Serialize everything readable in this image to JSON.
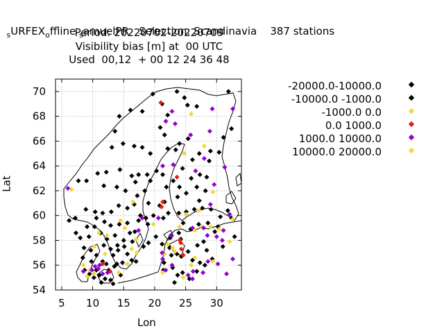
{
  "title": {
    "line1": "SURFEX offline SamuelPR   Selection: Scandinavia    387 stations",
    "line1_parts": {
      "a_big": "URFEX",
      "a_sub": "s",
      "b_sub": "o",
      "b_big": "ffline ",
      "c_sub": "s",
      "c_big": "amuelPR   Selection: Scandinavia    387 stations"
    },
    "line2": "Period: 20220702-20220709",
    "line3": "Visibility bias [m] at  00 UTC",
    "line4": "Used  00,12  + 00 12 24 36 48"
  },
  "colors": {
    "black": "#000000",
    "yellow": "#f0d840",
    "red": "#e02010",
    "purple": "#9400d3",
    "grid": "#a0a0a0",
    "coast": "#000000"
  },
  "chart_data": {
    "type": "scatter",
    "xlabel": "Lon",
    "ylabel": "Lat",
    "xlim": [
      4,
      34
    ],
    "ylim": [
      54,
      71
    ],
    "xticks": [
      5,
      10,
      15,
      20,
      25,
      30
    ],
    "yticks": [
      54,
      56,
      58,
      60,
      62,
      64,
      66,
      68,
      70
    ],
    "grid": true,
    "legend_placement": "right",
    "series": [
      {
        "name": "-20000.0-10000.0",
        "color": "black",
        "points": [
          [
            31.9,
            70.0
          ],
          [
            23.6,
            70.0
          ],
          [
            24.8,
            69.5
          ],
          [
            19.7,
            69.8
          ],
          [
            21.2,
            69.0
          ],
          [
            25.3,
            68.9
          ],
          [
            26.8,
            68.8
          ],
          [
            22.1,
            68.1
          ],
          [
            18.0,
            68.4
          ],
          [
            16.1,
            68.5
          ],
          [
            14.3,
            68.0
          ],
          [
            13.6,
            66.8
          ],
          [
            13.1,
            65.5
          ],
          [
            14.9,
            65.8
          ],
          [
            18.0,
            65.5
          ],
          [
            16.7,
            65.6
          ],
          [
            19.3,
            65.0
          ],
          [
            20.9,
            67.1
          ],
          [
            21.6,
            66.5
          ],
          [
            24.0,
            65.8
          ],
          [
            25.4,
            66.2
          ],
          [
            27.2,
            65.0
          ],
          [
            29.0,
            65.2
          ],
          [
            30.4,
            65.1
          ],
          [
            31.1,
            66.3
          ],
          [
            22.1,
            65.4
          ],
          [
            23.4,
            65.3
          ],
          [
            26.1,
            64.5
          ],
          [
            28.8,
            64.4
          ],
          [
            32.4,
            67.0
          ],
          [
            25.9,
            63.0
          ],
          [
            27.3,
            63.3
          ],
          [
            28.4,
            63.1
          ],
          [
            24.5,
            63.8
          ],
          [
            21.3,
            63.3
          ],
          [
            20.3,
            63.6
          ],
          [
            18.8,
            63.3
          ],
          [
            17.4,
            63.3
          ],
          [
            16.3,
            63.2
          ],
          [
            14.4,
            63.7
          ],
          [
            12.2,
            63.5
          ],
          [
            10.8,
            63.4
          ],
          [
            9.0,
            62.8
          ],
          [
            7.7,
            62.8
          ],
          [
            11.8,
            62.4
          ],
          [
            13.9,
            62.3
          ],
          [
            15.3,
            62.0
          ],
          [
            16.9,
            62.7
          ],
          [
            18.4,
            62.0
          ],
          [
            19.3,
            62.8
          ],
          [
            21.9,
            62.3
          ],
          [
            23.0,
            62.8
          ],
          [
            24.0,
            62.3
          ],
          [
            25.1,
            61.8
          ],
          [
            26.8,
            62.3
          ],
          [
            28.2,
            62.0
          ],
          [
            27.2,
            61.2
          ],
          [
            23.7,
            61.5
          ],
          [
            21.6,
            61.1
          ],
          [
            19.0,
            61.0
          ],
          [
            17.2,
            61.6
          ],
          [
            16.7,
            60.9
          ],
          [
            15.6,
            60.6
          ],
          [
            14.2,
            60.8
          ],
          [
            13.0,
            60.3
          ],
          [
            11.6,
            60.2
          ],
          [
            10.4,
            60.3
          ],
          [
            8.9,
            60.5
          ],
          [
            7.2,
            59.8
          ],
          [
            6.2,
            59.6
          ],
          [
            9.1,
            59.1
          ],
          [
            10.6,
            59.8
          ],
          [
            11.9,
            59.5
          ],
          [
            12.9,
            59.2
          ],
          [
            14.3,
            59.3
          ],
          [
            15.6,
            59.4
          ],
          [
            17.4,
            59.6
          ],
          [
            18.6,
            59.8
          ],
          [
            19.8,
            60.0
          ],
          [
            22.2,
            60.2
          ],
          [
            23.9,
            60.2
          ],
          [
            25.1,
            60.3
          ],
          [
            26.4,
            60.5
          ],
          [
            27.7,
            60.6
          ],
          [
            29.1,
            60.5
          ],
          [
            30.6,
            59.9
          ],
          [
            24.6,
            59.4
          ],
          [
            25.8,
            58.9
          ],
          [
            23.9,
            58.6
          ],
          [
            22.5,
            58.2
          ],
          [
            21.2,
            57.7
          ],
          [
            19.0,
            57.8
          ],
          [
            18.2,
            57.5
          ],
          [
            16.4,
            57.9
          ],
          [
            15.0,
            58.0
          ],
          [
            13.6,
            58.4
          ],
          [
            12.3,
            58.1
          ],
          [
            11.3,
            58.6
          ],
          [
            10.3,
            59.1
          ],
          [
            8.0,
            58.2
          ],
          [
            9.4,
            58.3
          ],
          [
            7.3,
            58.6
          ],
          [
            11.8,
            57.6
          ],
          [
            12.9,
            57.3
          ],
          [
            14.1,
            57.2
          ],
          [
            15.6,
            56.9
          ],
          [
            16.3,
            56.4
          ],
          [
            14.8,
            56.2
          ],
          [
            13.5,
            55.9
          ],
          [
            12.6,
            55.6
          ],
          [
            11.1,
            55.2
          ],
          [
            10.2,
            55.0
          ],
          [
            9.5,
            55.3
          ],
          [
            8.7,
            55.6
          ],
          [
            9.8,
            56.3
          ],
          [
            10.6,
            56.8
          ],
          [
            9.7,
            57.2
          ],
          [
            8.4,
            56.6
          ],
          [
            8.6,
            57.4
          ],
          [
            12.2,
            56.1
          ],
          [
            12.0,
            54.9
          ],
          [
            11.4,
            54.6
          ],
          [
            13.3,
            54.5
          ],
          [
            14.5,
            55.2
          ],
          [
            12.9,
            54.8
          ],
          [
            10.6,
            55.6
          ],
          [
            11.6,
            56.3
          ],
          [
            22.7,
            56.8
          ],
          [
            23.6,
            56.9
          ],
          [
            24.3,
            56.7
          ],
          [
            25.4,
            57.1
          ],
          [
            26.1,
            56.4
          ],
          [
            27.3,
            56.2
          ],
          [
            28.1,
            56.0
          ],
          [
            26.9,
            57.6
          ],
          [
            27.9,
            57.9
          ],
          [
            24.2,
            58.1
          ],
          [
            22.4,
            57.4
          ],
          [
            21.5,
            56.2
          ],
          [
            22.9,
            55.8
          ],
          [
            23.7,
            55.2
          ],
          [
            24.5,
            55.4
          ],
          [
            25.6,
            54.9
          ],
          [
            21.4,
            55.6
          ],
          [
            23.2,
            54.6
          ],
          [
            26.8,
            55.5
          ],
          [
            29.3,
            56.5
          ],
          [
            28.4,
            57.2
          ],
          [
            29.7,
            58.7
          ],
          [
            30.2,
            59.1
          ],
          [
            28.6,
            59.4
          ],
          [
            27.1,
            59.3
          ],
          [
            31.8,
            60.4
          ],
          [
            32.4,
            59.8
          ],
          [
            32.9,
            58.3
          ],
          [
            31.0,
            57.5
          ],
          [
            20.2,
            58.3
          ],
          [
            18.9,
            59.3
          ],
          [
            17.7,
            60.0
          ],
          [
            20.8,
            60.8
          ],
          [
            21.4,
            59.8
          ],
          [
            14.0,
            57.6
          ],
          [
            15.1,
            57.5
          ],
          [
            13.3,
            56.8
          ],
          [
            13.9,
            56.1
          ],
          [
            16.8,
            58.7
          ],
          [
            16.0,
            58.6
          ],
          [
            17.0,
            56.3
          ]
        ]
      },
      {
        "name": "-10000.0 -1000.0",
        "color": "black",
        "points": []
      },
      {
        "name": "-1000.0 0.0",
        "color": "yellow",
        "points": [
          [
            25.9,
            68.2
          ],
          [
            24.8,
            65.0
          ],
          [
            28.0,
            65.6
          ],
          [
            29.4,
            61.9
          ],
          [
            27.1,
            60.4
          ],
          [
            25.1,
            60.1
          ],
          [
            24.0,
            59.1
          ],
          [
            26.5,
            58.8
          ],
          [
            27.6,
            59.1
          ],
          [
            22.9,
            57.4
          ],
          [
            23.3,
            57.1
          ],
          [
            26.5,
            56.6
          ],
          [
            29.4,
            56.3
          ],
          [
            25.9,
            56.0
          ],
          [
            24.6,
            55.0
          ],
          [
            21.6,
            56.9
          ],
          [
            19.8,
            59.3
          ],
          [
            14.5,
            59.6
          ],
          [
            15.2,
            59.0
          ],
          [
            17.0,
            58.1
          ],
          [
            16.3,
            57.3
          ],
          [
            11.0,
            58.6
          ],
          [
            10.3,
            57.5
          ],
          [
            8.5,
            56.0
          ],
          [
            9.5,
            55.6
          ],
          [
            10.2,
            55.3
          ],
          [
            12.0,
            56.9
          ],
          [
            14.2,
            55.4
          ],
          [
            15.6,
            56.1
          ],
          [
            6.6,
            62.1
          ],
          [
            16.5,
            61.1
          ],
          [
            30.4,
            58.9
          ],
          [
            32.1,
            57.9
          ],
          [
            32.6,
            59.7
          ],
          [
            21.3,
            55.4
          ],
          [
            17.1,
            57.0
          ],
          [
            22.1,
            57.7
          ],
          [
            29.0,
            59.1
          ]
        ]
      },
      {
        "name": "0.0 1000.0",
        "color": "red",
        "points": [
          [
            21.0,
            69.1
          ],
          [
            23.6,
            63.1
          ],
          [
            21.1,
            60.7
          ],
          [
            21.3,
            61.1
          ],
          [
            24.2,
            57.8
          ],
          [
            24.3,
            57.3
          ],
          [
            24.6,
            56.8
          ],
          [
            24.1,
            58.0
          ],
          [
            11.6,
            56.1
          ],
          [
            12.8,
            55.5
          ]
        ]
      },
      {
        "name": "1000.0 10000.0",
        "color": "purple",
        "points": [
          [
            32.6,
            68.6
          ],
          [
            29.3,
            68.6
          ],
          [
            22.8,
            68.4
          ],
          [
            21.8,
            67.6
          ],
          [
            23.3,
            67.4
          ],
          [
            25.8,
            66.5
          ],
          [
            28.9,
            66.8
          ],
          [
            28.0,
            64.6
          ],
          [
            31.3,
            63.9
          ],
          [
            26.6,
            63.6
          ],
          [
            29.6,
            62.5
          ],
          [
            23.0,
            64.1
          ],
          [
            21.3,
            64.0
          ],
          [
            20.6,
            59.8
          ],
          [
            29.0,
            60.9
          ],
          [
            26.1,
            59.0
          ],
          [
            28.5,
            58.4
          ],
          [
            30.0,
            58.3
          ],
          [
            31.1,
            58.8
          ],
          [
            30.9,
            58.0
          ],
          [
            32.6,
            56.5
          ],
          [
            30.2,
            56.1
          ],
          [
            28.6,
            56.3
          ],
          [
            27.8,
            55.4
          ],
          [
            26.2,
            55.5
          ],
          [
            25.4,
            55.2
          ],
          [
            26.1,
            54.9
          ],
          [
            22.8,
            56.0
          ],
          [
            21.8,
            55.6
          ],
          [
            21.3,
            56.5
          ],
          [
            21.2,
            57.0
          ],
          [
            22.6,
            58.4
          ],
          [
            31.6,
            55.3
          ],
          [
            32.1,
            60.1
          ],
          [
            27.9,
            59.0
          ],
          [
            11.1,
            56.0
          ],
          [
            10.9,
            55.7
          ],
          [
            11.6,
            55.3
          ],
          [
            12.4,
            55.4
          ],
          [
            9.9,
            55.6
          ],
          [
            10.4,
            55.9
          ],
          [
            18.0,
            59.8
          ],
          [
            17.4,
            58.8
          ],
          [
            6.0,
            62.2
          ],
          [
            8.5,
            55.5
          ]
        ]
      },
      {
        "name": "10000.0 20000.0",
        "color": "yellow",
        "points": [
          [
            9.1,
            55.1
          ],
          [
            12.3,
            58.4
          ]
        ]
      }
    ]
  }
}
